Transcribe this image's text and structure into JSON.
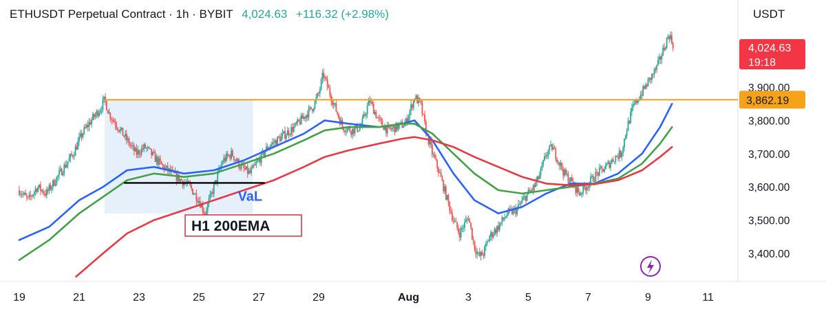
{
  "header": {
    "symbol": "ETHUSDT Perpetual Contract · 1h · BYBIT",
    "last": "4,024.63",
    "change": "+116.32 (+2.98%)"
  },
  "axis_unit": "USDT",
  "price_tag": {
    "value": "4,024.63",
    "countdown": "19:18"
  },
  "level_tag": {
    "value": "3,862.19"
  },
  "annotations": {
    "val": "VaL",
    "ema": "H1 200EMA"
  },
  "colors": {
    "up": "#26a69a",
    "down": "#ef5350",
    "price_tag": "#f23645",
    "level": "#f7a21b",
    "ema_fast": "#2962ff",
    "ema_mid": "#43a047",
    "ema_slow": "#e53946",
    "val_text": "#2962ff",
    "ema_box": "#c9303b",
    "range_fill": "#e6f0fb",
    "bolt": "#8e24aa"
  },
  "icons": {
    "bolt": "lightning-bolt-icon"
  },
  "chart_data": {
    "type": "candlestick",
    "title": "ETHUSDT Perpetual Contract · 1h · BYBIT",
    "ylim": [
      3320,
      4100
    ],
    "y_ticks": [
      "3,400.00",
      "3,500.00",
      "3,600.00",
      "3,700.00",
      "3,800.00",
      "3,900.00"
    ],
    "y_tick_values": [
      3400,
      3500,
      3600,
      3700,
      3800,
      3900
    ],
    "x_ticks": [
      "19",
      "21",
      "23",
      "25",
      "27",
      "29",
      "Aug",
      "3",
      "5",
      "7",
      "9",
      "11"
    ],
    "x_tick_days": [
      0,
      2,
      4,
      6,
      8,
      10,
      13,
      15,
      17,
      19,
      21,
      23
    ],
    "xlim_days": [
      0,
      24.4
    ],
    "horizontal_level": 3862.19,
    "val_level": 3612,
    "price_path": [
      [
        0,
        3590
      ],
      [
        0.3,
        3560
      ],
      [
        0.6,
        3600
      ],
      [
        0.9,
        3580
      ],
      [
        1.2,
        3620
      ],
      [
        1.5,
        3660
      ],
      [
        1.8,
        3700
      ],
      [
        2.1,
        3760
      ],
      [
        2.4,
        3800
      ],
      [
        2.7,
        3835
      ],
      [
        2.85,
        3862
      ],
      [
        3.0,
        3820
      ],
      [
        3.3,
        3780
      ],
      [
        3.6,
        3740
      ],
      [
        3.9,
        3700
      ],
      [
        4.2,
        3720
      ],
      [
        4.5,
        3690
      ],
      [
        4.8,
        3660
      ],
      [
        5.1,
        3640
      ],
      [
        5.4,
        3620
      ],
      [
        5.7,
        3600
      ],
      [
        6.0,
        3560
      ],
      [
        6.2,
        3520
      ],
      [
        6.5,
        3600
      ],
      [
        6.8,
        3680
      ],
      [
        7.1,
        3700
      ],
      [
        7.4,
        3660
      ],
      [
        7.7,
        3640
      ],
      [
        8.0,
        3680
      ],
      [
        8.3,
        3720
      ],
      [
        8.6,
        3740
      ],
      [
        8.9,
        3760
      ],
      [
        9.2,
        3780
      ],
      [
        9.5,
        3810
      ],
      [
        9.8,
        3840
      ],
      [
        10.0,
        3880
      ],
      [
        10.15,
        3940
      ],
      [
        10.3,
        3900
      ],
      [
        10.5,
        3850
      ],
      [
        10.8,
        3780
      ],
      [
        11.1,
        3770
      ],
      [
        11.4,
        3780
      ],
      [
        11.7,
        3860
      ],
      [
        12.0,
        3800
      ],
      [
        12.3,
        3770
      ],
      [
        12.6,
        3780
      ],
      [
        12.9,
        3790
      ],
      [
        13.2,
        3870
      ],
      [
        13.4,
        3850
      ],
      [
        13.6,
        3760
      ],
      [
        13.8,
        3700
      ],
      [
        14.0,
        3650
      ],
      [
        14.3,
        3560
      ],
      [
        14.5,
        3500
      ],
      [
        14.7,
        3460
      ],
      [
        15.0,
        3510
      ],
      [
        15.2,
        3420
      ],
      [
        15.35,
        3390
      ],
      [
        15.5,
        3400
      ],
      [
        15.7,
        3450
      ],
      [
        16.0,
        3480
      ],
      [
        16.3,
        3520
      ],
      [
        16.6,
        3530
      ],
      [
        16.9,
        3570
      ],
      [
        17.2,
        3600
      ],
      [
        17.4,
        3640
      ],
      [
        17.6,
        3700
      ],
      [
        17.8,
        3720
      ],
      [
        18.0,
        3680
      ],
      [
        18.2,
        3640
      ],
      [
        18.4,
        3620
      ],
      [
        18.7,
        3580
      ],
      [
        19.0,
        3610
      ],
      [
        19.3,
        3640
      ],
      [
        19.6,
        3660
      ],
      [
        19.9,
        3690
      ],
      [
        20.1,
        3700
      ],
      [
        20.3,
        3780
      ],
      [
        20.5,
        3840
      ],
      [
        20.7,
        3870
      ],
      [
        20.9,
        3900
      ],
      [
        21.1,
        3930
      ],
      [
        21.3,
        3960
      ],
      [
        21.5,
        4010
      ],
      [
        21.7,
        4060
      ],
      [
        21.85,
        4024
      ]
    ],
    "series": [
      {
        "values": [
          [
            0,
            3440
          ],
          [
            1,
            3480
          ],
          [
            2,
            3560
          ],
          [
            2.8,
            3600
          ],
          [
            3.6,
            3650
          ],
          [
            4.5,
            3660
          ],
          [
            5.5,
            3640
          ],
          [
            6.5,
            3650
          ],
          [
            7.5,
            3680
          ],
          [
            8.5,
            3720
          ],
          [
            9.5,
            3760
          ],
          [
            10.2,
            3800
          ],
          [
            11,
            3790
          ],
          [
            12,
            3780
          ],
          [
            12.8,
            3790
          ],
          [
            13.2,
            3800
          ],
          [
            13.8,
            3740
          ],
          [
            14.5,
            3640
          ],
          [
            15.2,
            3560
          ],
          [
            16,
            3520
          ],
          [
            16.8,
            3540
          ],
          [
            17.6,
            3580
          ],
          [
            18.4,
            3610
          ],
          [
            19.2,
            3610
          ],
          [
            20,
            3640
          ],
          [
            20.8,
            3700
          ],
          [
            21.4,
            3780
          ],
          [
            21.8,
            3850
          ]
        ]
      },
      {
        "values": [
          [
            0,
            3380
          ],
          [
            1,
            3440
          ],
          [
            2,
            3520
          ],
          [
            2.8,
            3570
          ],
          [
            3.6,
            3620
          ],
          [
            4.5,
            3640
          ],
          [
            5.5,
            3630
          ],
          [
            6.5,
            3640
          ],
          [
            7.5,
            3670
          ],
          [
            8.5,
            3700
          ],
          [
            9.5,
            3740
          ],
          [
            10.2,
            3770
          ],
          [
            11,
            3780
          ],
          [
            12,
            3780
          ],
          [
            12.8,
            3790
          ],
          [
            13.2,
            3790
          ],
          [
            13.8,
            3760
          ],
          [
            14.5,
            3700
          ],
          [
            15.2,
            3640
          ],
          [
            16,
            3590
          ],
          [
            16.8,
            3580
          ],
          [
            17.6,
            3590
          ],
          [
            18.4,
            3600
          ],
          [
            19.2,
            3610
          ],
          [
            20,
            3625
          ],
          [
            20.8,
            3670
          ],
          [
            21.4,
            3730
          ],
          [
            21.8,
            3780
          ]
        ]
      },
      {
        "values": [
          [
            1.9,
            3330
          ],
          [
            2.8,
            3400
          ],
          [
            3.6,
            3460
          ],
          [
            4.5,
            3500
          ],
          [
            5.5,
            3530
          ],
          [
            6.5,
            3560
          ],
          [
            7.5,
            3590
          ],
          [
            8.5,
            3620
          ],
          [
            9.5,
            3660
          ],
          [
            10.2,
            3690
          ],
          [
            11,
            3710
          ],
          [
            12,
            3730
          ],
          [
            12.8,
            3745
          ],
          [
            13.2,
            3750
          ],
          [
            13.8,
            3740
          ],
          [
            14.5,
            3720
          ],
          [
            15.2,
            3690
          ],
          [
            16,
            3660
          ],
          [
            16.8,
            3630
          ],
          [
            17.6,
            3610
          ],
          [
            18.4,
            3605
          ],
          [
            19.2,
            3608
          ],
          [
            20,
            3620
          ],
          [
            20.8,
            3650
          ],
          [
            21.4,
            3690
          ],
          [
            21.8,
            3720
          ]
        ]
      }
    ]
  }
}
